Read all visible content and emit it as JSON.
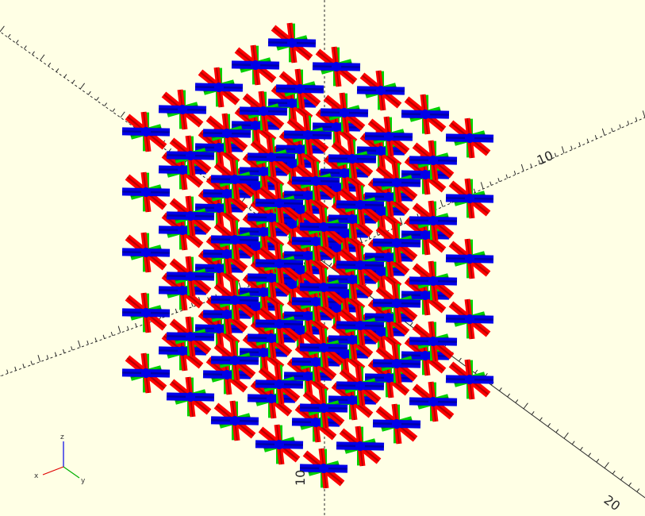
{
  "viewport": {
    "background": "#ffffe5",
    "axis_line_color": "#2a2a2a",
    "scale_labels": [
      "10",
      "10",
      "20"
    ],
    "orientation_gizmo": {
      "x_label": "x",
      "y_label": "y",
      "z_label": "z"
    }
  },
  "model": {
    "colors": {
      "x_bars": "#ff0000",
      "y_bars": "#00d000",
      "z_bars": "#0000e8"
    },
    "lattice": {
      "nx": 5,
      "ny": 5,
      "nz": 5
    }
  }
}
